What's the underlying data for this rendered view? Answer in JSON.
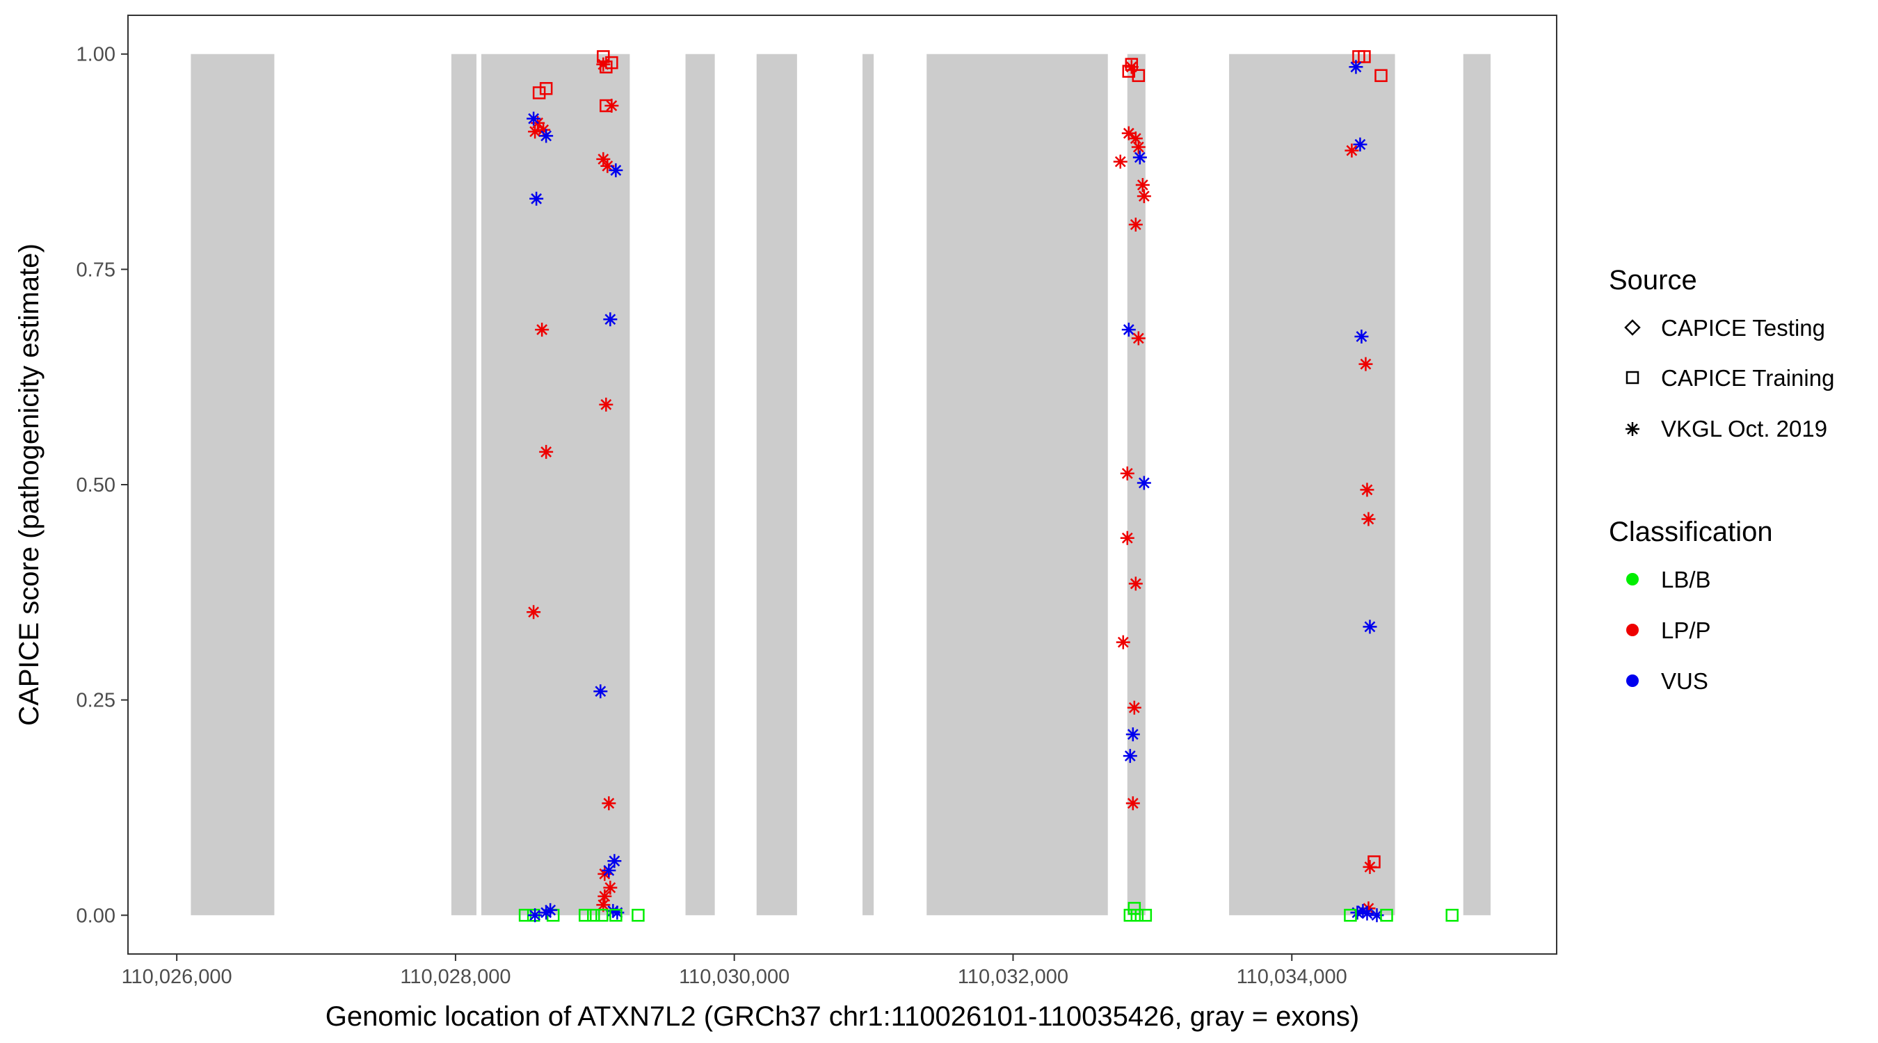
{
  "chart_data": {
    "type": "scatter",
    "xlabel": "Genomic location of ATXN7L2 (GRCh37 chr1:110026101-110035426, gray = exons)",
    "ylabel": "CAPICE score (pathogenicity estimate)",
    "xlim": [
      110025650,
      110035900
    ],
    "ylim": [
      -0.045,
      1.045
    ],
    "x_ticks": [
      110026000,
      110028000,
      110030000,
      110032000,
      110034000
    ],
    "x_tick_labels": [
      "110,026,000",
      "110,028,000",
      "110,030,000",
      "110,032,000",
      "110,034,000"
    ],
    "y_ticks": [
      0,
      0.25,
      0.5,
      0.75,
      1.0
    ],
    "y_tick_labels": [
      "0.00",
      "0.25",
      "0.50",
      "0.75",
      "1.00"
    ],
    "exons": [
      [
        110026101,
        110026700
      ],
      [
        110027970,
        110028150
      ],
      [
        110028185,
        110029250
      ],
      [
        110029650,
        110029860
      ],
      [
        110030160,
        110030450
      ],
      [
        110030920,
        110031000
      ],
      [
        110031380,
        110032680
      ],
      [
        110032820,
        110032950
      ],
      [
        110033550,
        110034740
      ],
      [
        110035230,
        110035426
      ]
    ],
    "colors": {
      "LB/B": "#00ee00",
      "LP/P": "#ee0000",
      "VUS": "#0000ee",
      "exon": "#cccccc"
    },
    "legend": {
      "source_title": "Source",
      "source_items": [
        "CAPICE Testing",
        "CAPICE Training",
        "VKGL Oct. 2019"
      ],
      "class_title": "Classification",
      "class_items": [
        "LB/B",
        "LP/P",
        "VUS"
      ]
    },
    "points": [
      {
        "x": 110028600,
        "y": 0.955,
        "shape": "square",
        "class": "LP/P"
      },
      {
        "x": 110028650,
        "y": 0.96,
        "shape": "square",
        "class": "LP/P"
      },
      {
        "x": 110029060,
        "y": 0.997,
        "shape": "square",
        "class": "LP/P"
      },
      {
        "x": 110029080,
        "y": 0.985,
        "shape": "square",
        "class": "LP/P"
      },
      {
        "x": 110029120,
        "y": 0.99,
        "shape": "square",
        "class": "LP/P"
      },
      {
        "x": 110029080,
        "y": 0.94,
        "shape": "square",
        "class": "LP/P"
      },
      {
        "x": 110028570,
        "y": 0.91,
        "shape": "star",
        "class": "LP/P"
      },
      {
        "x": 110028590,
        "y": 0.92,
        "shape": "star",
        "class": "LP/P"
      },
      {
        "x": 110028630,
        "y": 0.912,
        "shape": "star",
        "class": "LP/P"
      },
      {
        "x": 110028560,
        "y": 0.925,
        "shape": "star",
        "class": "VUS"
      },
      {
        "x": 110028650,
        "y": 0.905,
        "shape": "star",
        "class": "VUS"
      },
      {
        "x": 110028580,
        "y": 0.832,
        "shape": "star",
        "class": "VUS"
      },
      {
        "x": 110028620,
        "y": 0.68,
        "shape": "star",
        "class": "LP/P"
      },
      {
        "x": 110028650,
        "y": 0.538,
        "shape": "star",
        "class": "LP/P"
      },
      {
        "x": 110028560,
        "y": 0.352,
        "shape": "star",
        "class": "LP/P"
      },
      {
        "x": 110029060,
        "y": 0.988,
        "shape": "star",
        "class": "LP/P"
      },
      {
        "x": 110029120,
        "y": 0.94,
        "shape": "star",
        "class": "LP/P"
      },
      {
        "x": 110029060,
        "y": 0.878,
        "shape": "star",
        "class": "LP/P"
      },
      {
        "x": 110029090,
        "y": 0.87,
        "shape": "star",
        "class": "LP/P"
      },
      {
        "x": 110029150,
        "y": 0.865,
        "shape": "star",
        "class": "VUS"
      },
      {
        "x": 110029110,
        "y": 0.692,
        "shape": "star",
        "class": "VUS"
      },
      {
        "x": 110029080,
        "y": 0.593,
        "shape": "star",
        "class": "LP/P"
      },
      {
        "x": 110029040,
        "y": 0.26,
        "shape": "star",
        "class": "VUS"
      },
      {
        "x": 110029100,
        "y": 0.13,
        "shape": "star",
        "class": "LP/P"
      },
      {
        "x": 110029140,
        "y": 0.063,
        "shape": "star",
        "class": "VUS"
      },
      {
        "x": 110029070,
        "y": 0.048,
        "shape": "star",
        "class": "LP/P"
      },
      {
        "x": 110029100,
        "y": 0.052,
        "shape": "star",
        "class": "VUS"
      },
      {
        "x": 110029110,
        "y": 0.032,
        "shape": "star",
        "class": "LP/P"
      },
      {
        "x": 110029070,
        "y": 0.022,
        "shape": "star",
        "class": "LP/P"
      },
      {
        "x": 110029060,
        "y": 0.012,
        "shape": "star",
        "class": "LP/P"
      },
      {
        "x": 110029130,
        "y": 0.005,
        "shape": "star",
        "class": "VUS"
      },
      {
        "x": 110029160,
        "y": 0.003,
        "shape": "star",
        "class": "VUS"
      },
      {
        "x": 110028500,
        "y": 0.0,
        "shape": "square",
        "class": "LB/B"
      },
      {
        "x": 110028560,
        "y": 0.0,
        "shape": "square",
        "class": "LB/B"
      },
      {
        "x": 110028700,
        "y": 0.0,
        "shape": "square",
        "class": "LB/B"
      },
      {
        "x": 110028570,
        "y": 0.0,
        "shape": "star",
        "class": "VUS"
      },
      {
        "x": 110028650,
        "y": 0.003,
        "shape": "star",
        "class": "VUS"
      },
      {
        "x": 110028680,
        "y": 0.006,
        "shape": "star",
        "class": "VUS"
      },
      {
        "x": 110028930,
        "y": 0.0,
        "shape": "square",
        "class": "LB/B"
      },
      {
        "x": 110028990,
        "y": 0.0,
        "shape": "square",
        "class": "LB/B"
      },
      {
        "x": 110029050,
        "y": 0.0,
        "shape": "square",
        "class": "LB/B"
      },
      {
        "x": 110029150,
        "y": 0.0,
        "shape": "square",
        "class": "LB/B"
      },
      {
        "x": 110029310,
        "y": 0.0,
        "shape": "square",
        "class": "LB/B"
      },
      {
        "x": 110032830,
        "y": 0.98,
        "shape": "square",
        "class": "LP/P"
      },
      {
        "x": 110032850,
        "y": 0.988,
        "shape": "square",
        "class": "LP/P"
      },
      {
        "x": 110032900,
        "y": 0.975,
        "shape": "square",
        "class": "LP/P"
      },
      {
        "x": 110032850,
        "y": 0.985,
        "shape": "star",
        "class": "LP/P"
      },
      {
        "x": 110032830,
        "y": 0.908,
        "shape": "star",
        "class": "LP/P"
      },
      {
        "x": 110032880,
        "y": 0.902,
        "shape": "star",
        "class": "LP/P"
      },
      {
        "x": 110032900,
        "y": 0.892,
        "shape": "star",
        "class": "LP/P"
      },
      {
        "x": 110032770,
        "y": 0.875,
        "shape": "star",
        "class": "LP/P"
      },
      {
        "x": 110032910,
        "y": 0.88,
        "shape": "star",
        "class": "VUS"
      },
      {
        "x": 110032930,
        "y": 0.848,
        "shape": "star",
        "class": "LP/P"
      },
      {
        "x": 110032940,
        "y": 0.835,
        "shape": "star",
        "class": "LP/P"
      },
      {
        "x": 110032880,
        "y": 0.802,
        "shape": "star",
        "class": "LP/P"
      },
      {
        "x": 110032830,
        "y": 0.68,
        "shape": "star",
        "class": "VUS"
      },
      {
        "x": 110032900,
        "y": 0.67,
        "shape": "star",
        "class": "LP/P"
      },
      {
        "x": 110032820,
        "y": 0.513,
        "shape": "star",
        "class": "LP/P"
      },
      {
        "x": 110032940,
        "y": 0.502,
        "shape": "star",
        "class": "VUS"
      },
      {
        "x": 110032820,
        "y": 0.438,
        "shape": "star",
        "class": "LP/P"
      },
      {
        "x": 110032880,
        "y": 0.385,
        "shape": "star",
        "class": "LP/P"
      },
      {
        "x": 110032790,
        "y": 0.317,
        "shape": "star",
        "class": "LP/P"
      },
      {
        "x": 110032870,
        "y": 0.241,
        "shape": "star",
        "class": "LP/P"
      },
      {
        "x": 110032860,
        "y": 0.21,
        "shape": "star",
        "class": "VUS"
      },
      {
        "x": 110032840,
        "y": 0.185,
        "shape": "star",
        "class": "VUS"
      },
      {
        "x": 110032860,
        "y": 0.13,
        "shape": "star",
        "class": "LP/P"
      },
      {
        "x": 110032840,
        "y": 0.0,
        "shape": "square",
        "class": "LB/B"
      },
      {
        "x": 110032870,
        "y": 0.008,
        "shape": "square",
        "class": "LB/B"
      },
      {
        "x": 110032890,
        "y": 0.0,
        "shape": "square",
        "class": "LB/B"
      },
      {
        "x": 110032950,
        "y": 0.0,
        "shape": "square",
        "class": "LB/B"
      },
      {
        "x": 110034480,
        "y": 0.997,
        "shape": "square",
        "class": "LP/P"
      },
      {
        "x": 110034520,
        "y": 0.997,
        "shape": "square",
        "class": "LP/P"
      },
      {
        "x": 110034640,
        "y": 0.975,
        "shape": "square",
        "class": "LP/P"
      },
      {
        "x": 110034460,
        "y": 0.985,
        "shape": "star",
        "class": "VUS"
      },
      {
        "x": 110034490,
        "y": 0.895,
        "shape": "star",
        "class": "VUS"
      },
      {
        "x": 110034430,
        "y": 0.888,
        "shape": "star",
        "class": "LP/P"
      },
      {
        "x": 110034500,
        "y": 0.672,
        "shape": "star",
        "class": "VUS"
      },
      {
        "x": 110034530,
        "y": 0.64,
        "shape": "star",
        "class": "LP/P"
      },
      {
        "x": 110034540,
        "y": 0.494,
        "shape": "star",
        "class": "LP/P"
      },
      {
        "x": 110034550,
        "y": 0.46,
        "shape": "star",
        "class": "LP/P"
      },
      {
        "x": 110034560,
        "y": 0.335,
        "shape": "star",
        "class": "VUS"
      },
      {
        "x": 110034590,
        "y": 0.062,
        "shape": "square",
        "class": "LP/P"
      },
      {
        "x": 110034560,
        "y": 0.056,
        "shape": "star",
        "class": "LP/P"
      },
      {
        "x": 110034550,
        "y": 0.008,
        "shape": "star",
        "class": "LP/P"
      },
      {
        "x": 110034470,
        "y": 0.003,
        "shape": "star",
        "class": "VUS"
      },
      {
        "x": 110034510,
        "y": 0.005,
        "shape": "star",
        "class": "VUS"
      },
      {
        "x": 110034540,
        "y": 0.002,
        "shape": "star",
        "class": "VUS"
      },
      {
        "x": 110034610,
        "y": 0.0,
        "shape": "star",
        "class": "VUS"
      },
      {
        "x": 110034420,
        "y": 0.0,
        "shape": "square",
        "class": "LB/B"
      },
      {
        "x": 110034680,
        "y": 0.0,
        "shape": "square",
        "class": "LB/B"
      },
      {
        "x": 110035150,
        "y": 0.0,
        "shape": "square",
        "class": "LB/B"
      }
    ]
  }
}
